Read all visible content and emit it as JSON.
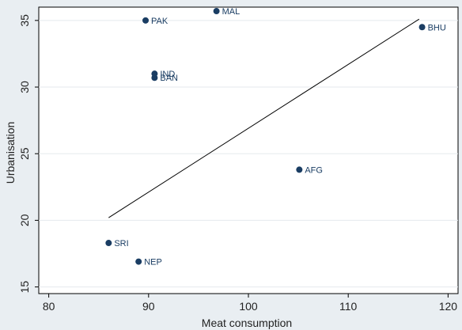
{
  "chart_data": {
    "type": "scatter",
    "xlabel": "Meat consumption",
    "ylabel": "Urbanisation",
    "xlim": [
      79,
      121
    ],
    "ylim": [
      14.5,
      36
    ],
    "x_ticks": [
      80,
      90,
      100,
      110,
      120
    ],
    "y_ticks": [
      15,
      20,
      25,
      30,
      35
    ],
    "grid": "horizontal",
    "points": [
      {
        "label": "MAL",
        "x": 96.8,
        "y": 35.7
      },
      {
        "label": "PAK",
        "x": 89.7,
        "y": 35.0
      },
      {
        "label": "BHU",
        "x": 117.4,
        "y": 34.5
      },
      {
        "label": "IND",
        "x": 90.6,
        "y": 31.0
      },
      {
        "label": "BAN",
        "x": 90.6,
        "y": 30.7
      },
      {
        "label": "AFG",
        "x": 105.1,
        "y": 23.8
      },
      {
        "label": "SRI",
        "x": 86.0,
        "y": 18.3
      },
      {
        "label": "NEP",
        "x": 89.0,
        "y": 16.9
      }
    ],
    "fit_line": {
      "x": [
        86.0,
        117.1
      ],
      "y": [
        20.2,
        35.1
      ]
    },
    "colors": {
      "background": "#e9eef2",
      "plot_area": "#ffffff",
      "marker": "#1a3d63",
      "grid": "#e5eaee",
      "line": "#000000"
    }
  }
}
